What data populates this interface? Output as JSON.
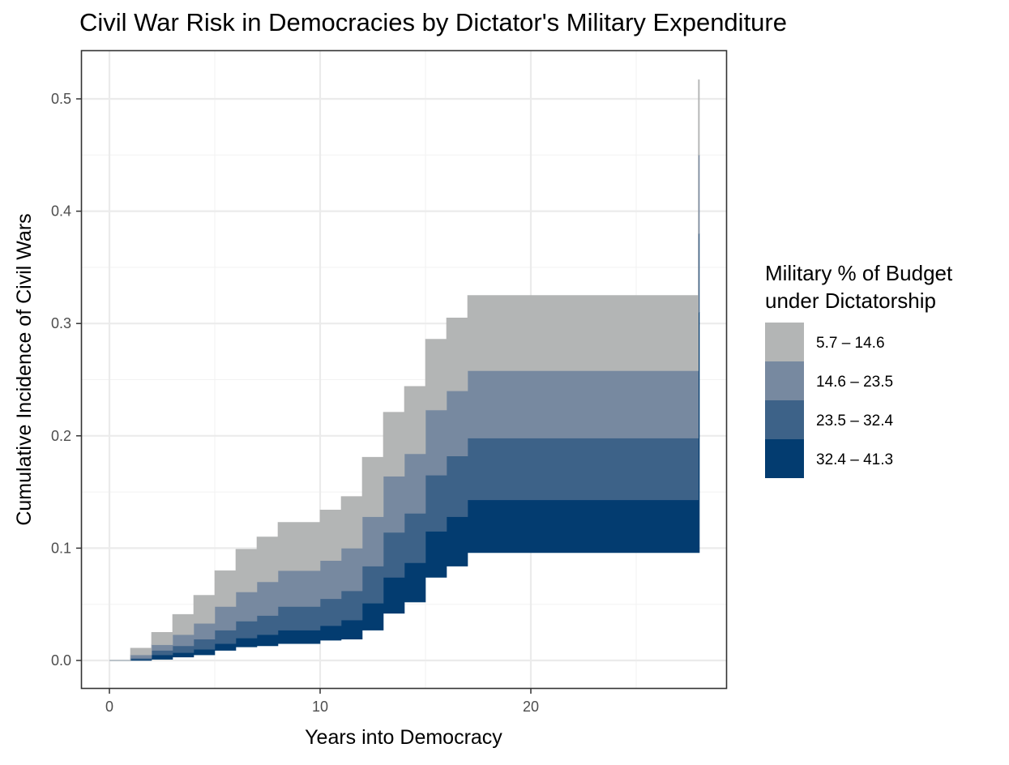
{
  "chart_data": {
    "type": "area",
    "subtype": "stacked step ribbons",
    "title": "Civil War Risk in Democracies by Dictator's Military Expenditure",
    "xlabel": "Years into Democracy",
    "ylabel": "Cumulative Incidence of Civil Wars",
    "xlim": [
      -1.3,
      29.3
    ],
    "ylim": [
      -0.025,
      0.543
    ],
    "x_ticks": [
      0,
      10,
      20
    ],
    "x_tick_labels": [
      "0",
      "10",
      "20"
    ],
    "y_ticks": [
      0,
      0.1,
      0.2,
      0.3,
      0.4,
      0.5
    ],
    "y_tick_labels": [
      "0.0",
      "0.1",
      "0.2",
      "0.3",
      "0.4",
      "0.5"
    ],
    "grid": true,
    "legend": {
      "position": "right",
      "title_lines": [
        "Military % of Budget",
        "under Dictatorship"
      ]
    },
    "x": [
      0,
      1,
      2,
      3,
      4,
      5,
      6,
      7,
      8,
      9,
      10,
      11,
      12,
      13,
      14,
      15,
      16,
      17,
      27.95
    ],
    "x_end": 28,
    "boundaries": [
      [
        0,
        0,
        0.001,
        0.003,
        0.005,
        0.009,
        0.012,
        0.013,
        0.015,
        0.015,
        0.018,
        0.019,
        0.027,
        0.042,
        0.052,
        0.074,
        0.084,
        0.096,
        0.096
      ],
      [
        0,
        0.001,
        0.005,
        0.007,
        0.01,
        0.015,
        0.02,
        0.023,
        0.027,
        0.027,
        0.031,
        0.036,
        0.051,
        0.074,
        0.087,
        0.115,
        0.128,
        0.143,
        0.31
      ],
      [
        0,
        0.002,
        0.009,
        0.013,
        0.019,
        0.027,
        0.035,
        0.04,
        0.048,
        0.048,
        0.055,
        0.062,
        0.084,
        0.114,
        0.131,
        0.165,
        0.182,
        0.198,
        0.38
      ],
      [
        0,
        0.005,
        0.014,
        0.023,
        0.033,
        0.048,
        0.061,
        0.07,
        0.08,
        0.08,
        0.089,
        0.1,
        0.128,
        0.164,
        0.184,
        0.223,
        0.24,
        0.258,
        0.45
      ],
      [
        0,
        0.011,
        0.025,
        0.041,
        0.058,
        0.08,
        0.099,
        0.11,
        0.123,
        0.123,
        0.134,
        0.146,
        0.181,
        0.221,
        0.244,
        0.286,
        0.305,
        0.325,
        0.517
      ]
    ],
    "series": [
      {
        "name": "32.4 – 41.3",
        "color": "#033c70",
        "lower": 0,
        "upper": 1
      },
      {
        "name": "23.5 – 32.4",
        "color": "#3d6288",
        "lower": 1,
        "upper": 2
      },
      {
        "name": "14.6 – 23.5",
        "color": "#7789a0",
        "lower": 2,
        "upper": 3
      },
      {
        "name": "5.7 – 14.6",
        "color": "#b3b5b5",
        "lower": 3,
        "upper": 4
      }
    ],
    "legend_order": [
      3,
      2,
      1,
      0
    ]
  }
}
